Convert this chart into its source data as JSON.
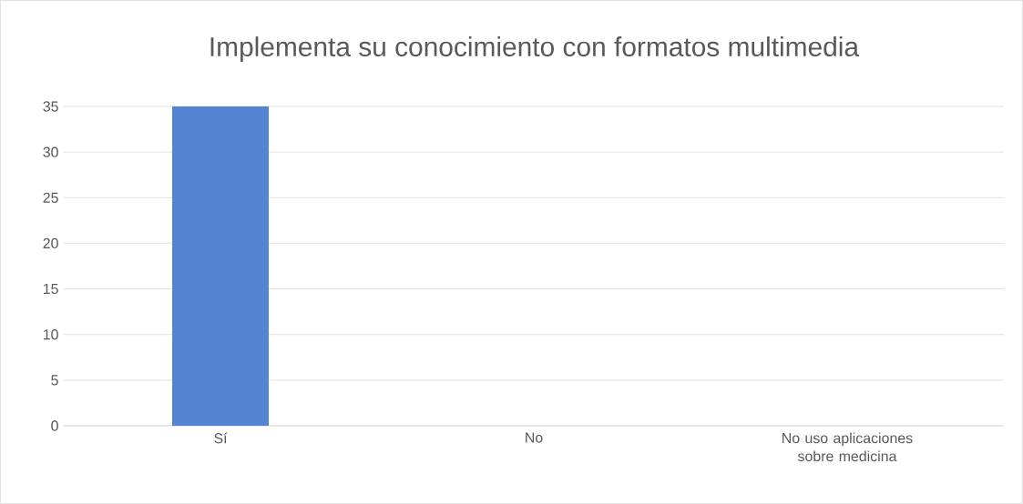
{
  "chart_data": {
    "type": "bar",
    "title": "Implementa su conocimiento con formatos multimedia",
    "categories": [
      "Sí",
      "No",
      "No uso aplicaciones sobre medicina"
    ],
    "values": [
      35,
      0,
      0
    ],
    "color": "#5585d2",
    "ylim": [
      0,
      35
    ],
    "yticks": [
      0,
      5,
      10,
      15,
      20,
      25,
      30,
      35
    ],
    "grid": "y"
  }
}
